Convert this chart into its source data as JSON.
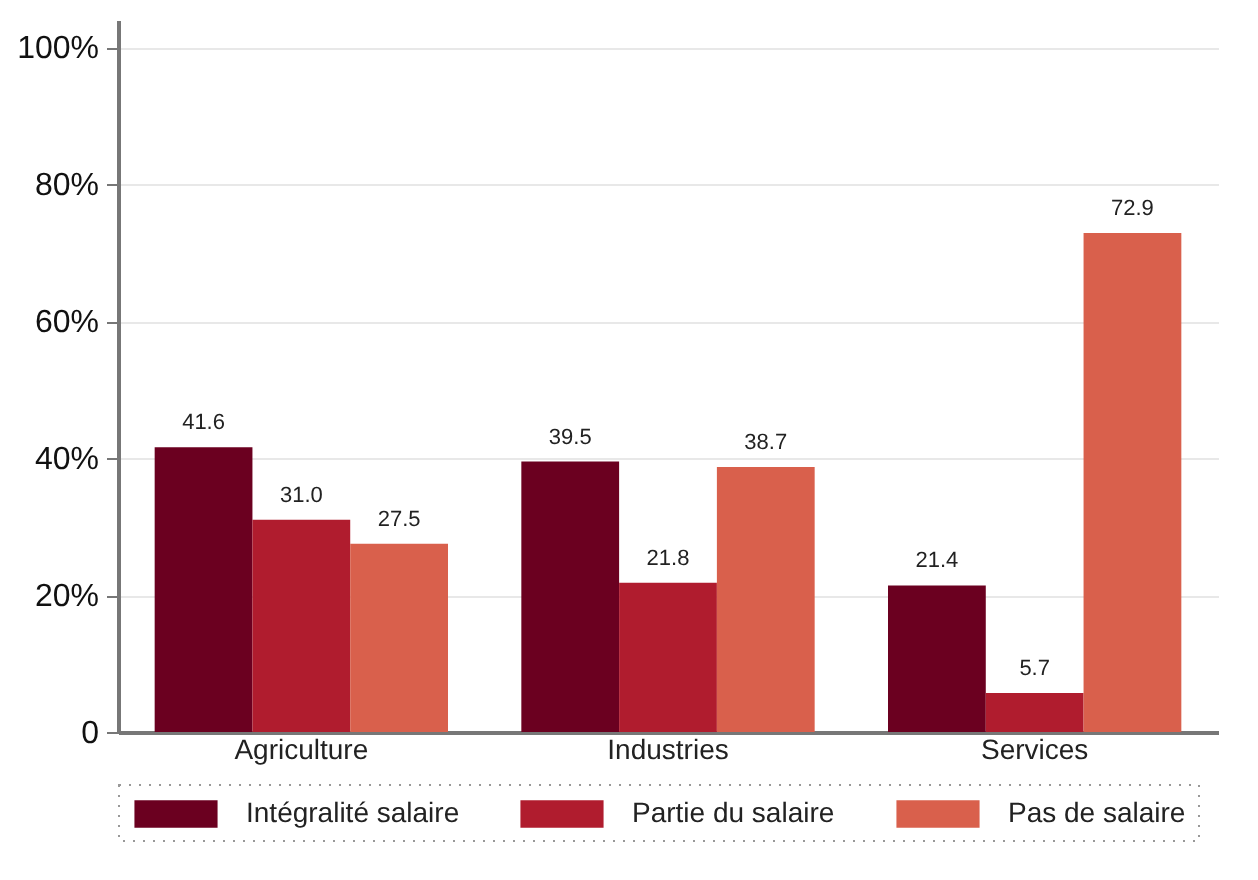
{
  "chart_data": {
    "type": "bar",
    "categories": [
      "Agriculture",
      "Industries",
      "Services"
    ],
    "series": [
      {
        "name": "Intégralité salaire",
        "color": "#6b0020",
        "values": [
          41.6,
          39.5,
          21.4
        ],
        "value_labels": [
          "41.6",
          "39.5",
          "21.4"
        ]
      },
      {
        "name": "Partie du salaire",
        "color": "#b01c2e",
        "values": [
          31.0,
          21.8,
          5.7
        ],
        "value_labels": [
          "31.0",
          "21.8",
          "5.7"
        ]
      },
      {
        "name": "Pas de salaire",
        "color": "#d9604c",
        "values": [
          27.5,
          38.7,
          72.9
        ],
        "value_labels": [
          "27.5",
          "38.7",
          "72.9"
        ]
      }
    ],
    "ylim": [
      0,
      104
    ],
    "yticks": [
      {
        "value": 0,
        "label": "0"
      },
      {
        "value": 20,
        "label": "20%"
      },
      {
        "value": 40,
        "label": "40%"
      },
      {
        "value": 60,
        "label": "60%"
      },
      {
        "value": 80,
        "label": "80%"
      },
      {
        "value": 100,
        "label": "100%"
      }
    ],
    "grid": "y",
    "legend": "bottom"
  }
}
